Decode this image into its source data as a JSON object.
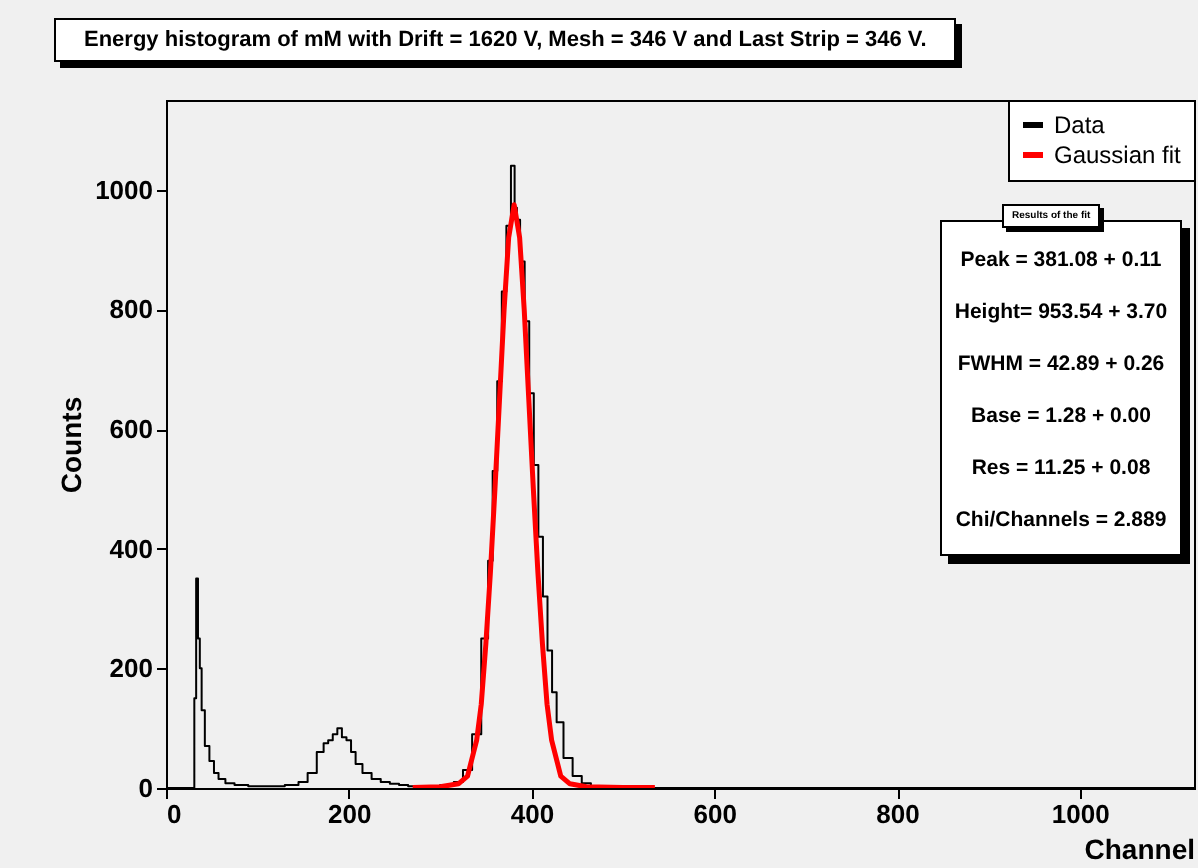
{
  "chart_data": {
    "type": "step",
    "title": "Energy histogram of mM with Drift = 1620 V, Mesh = 346 V and Last Strip = 346 V.",
    "xlabel": "Channel",
    "ylabel": "Counts",
    "xlim": [
      0,
      1125
    ],
    "xticks": [
      0,
      200,
      400,
      600,
      800,
      1000
    ],
    "ylim": [
      0,
      1150
    ],
    "yticks": [
      0,
      200,
      400,
      600,
      800,
      1000
    ],
    "grid": false,
    "legend": "top right",
    "marker": "none",
    "annotations": [
      "Results of the fit",
      "Peak = 381.08 +  0.11",
      "Height= 953.54 +  3.70",
      "FWHM = 42.89 +  0.26",
      "Base =  1.28 +  0.00",
      "Res  = 11.25 +  0.08",
      "Chi/Channels = 2.889"
    ],
    "series": [
      {
        "name": "Data",
        "color": "#000000",
        "x": [
          0,
          30,
          32,
          34,
          36,
          38,
          40,
          45,
          50,
          55,
          60,
          70,
          80,
          100,
          120,
          140,
          150,
          160,
          170,
          175,
          180,
          185,
          190,
          195,
          200,
          205,
          210,
          220,
          230,
          240,
          250,
          260,
          270,
          290,
          310,
          320,
          330,
          340,
          350,
          355,
          360,
          365,
          370,
          375,
          380,
          383,
          385,
          390,
          395,
          400,
          405,
          410,
          415,
          420,
          425,
          430,
          440,
          450,
          460,
          470,
          480,
          500,
          600,
          1125
        ],
        "values": [
          0,
          0,
          150,
          350,
          250,
          200,
          130,
          70,
          45,
          25,
          15,
          8,
          5,
          3,
          3,
          5,
          10,
          25,
          60,
          75,
          80,
          90,
          100,
          85,
          80,
          60,
          40,
          25,
          15,
          10,
          7,
          5,
          3,
          3,
          5,
          10,
          30,
          90,
          250,
          380,
          530,
          680,
          830,
          940,
          1040,
          970,
          950,
          880,
          780,
          660,
          540,
          420,
          320,
          230,
          160,
          110,
          50,
          20,
          8,
          3,
          1,
          0,
          0,
          0
        ]
      },
      {
        "name": "Gaussian fit",
        "type": "line",
        "color": "#ff0000",
        "x": [
          270,
          300,
          320,
          330,
          340,
          345,
          350,
          355,
          360,
          365,
          370,
          375,
          381,
          387,
          392,
          397,
          402,
          407,
          412,
          417,
          422,
          432,
          442,
          460,
          500,
          535
        ],
        "values": [
          1,
          2,
          7,
          20,
          80,
          140,
          240,
          360,
          500,
          650,
          800,
          920,
          975,
          920,
          800,
          650,
          500,
          360,
          240,
          140,
          80,
          20,
          7,
          2,
          1,
          1
        ]
      }
    ]
  }
}
